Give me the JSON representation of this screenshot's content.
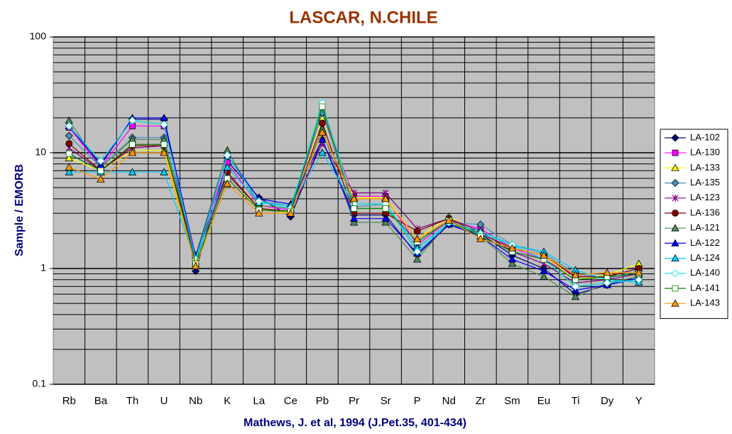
{
  "chart_data": {
    "type": "line",
    "title": "LASCAR, N.CHILE",
    "y_label": "Sample / EMORB",
    "x_label": "Mathews, J. et al, 1994 (J.Pet.35, 401-434)",
    "log_scale": true,
    "grid": true,
    "minor_grid": true,
    "legend_position": "right",
    "ylim": [
      0.1,
      100
    ],
    "yticks": [
      0.1,
      1,
      10,
      100
    ],
    "categories": [
      "Rb",
      "Ba",
      "Th",
      "U",
      "Nb",
      "K",
      "La",
      "Ce",
      "Pb",
      "Pr",
      "Sr",
      "P",
      "Nd",
      "Zr",
      "Sm",
      "Eu",
      "Ti",
      "Dy",
      "Y"
    ],
    "series": [
      {
        "name": "LA-102",
        "color": "#000080",
        "marker": "diamond",
        "values": [
          17,
          8,
          19.5,
          19.5,
          0.95,
          8.5,
          4.1,
          2.8,
          13,
          2.9,
          2.9,
          1.3,
          2.4,
          2.0,
          1.3,
          1.0,
          0.6,
          0.72,
          0.85
        ]
      },
      {
        "name": "LA-130",
        "color": "#ff00ff",
        "marker": "square",
        "values": [
          16.5,
          7.5,
          17,
          17,
          1.3,
          8.2,
          3.5,
          3.2,
          22,
          4.2,
          4.2,
          1.6,
          2.6,
          2.2,
          1.5,
          1.2,
          0.85,
          0.85,
          1.0
        ]
      },
      {
        "name": "LA-133",
        "color": "#ffff00",
        "marker": "triangle",
        "values": [
          9,
          7,
          10.5,
          10.5,
          1.1,
          6,
          3.3,
          3.0,
          20,
          4.1,
          4.1,
          1.8,
          2.8,
          2.0,
          1.5,
          1.3,
          0.8,
          0.88,
          1.1
        ]
      },
      {
        "name": "LA-135",
        "color": "#4a8fb8",
        "marker": "diamond",
        "values": [
          14,
          7.5,
          13.5,
          13.5,
          1.3,
          9.5,
          3.8,
          3.5,
          22,
          3.4,
          3.6,
          1.5,
          2.5,
          2.4,
          1.6,
          1.35,
          0.9,
          0.82,
          0.95
        ]
      },
      {
        "name": "LA-123",
        "color": "#800080",
        "marker": "star",
        "values": [
          11,
          7,
          11,
          11.5,
          1.2,
          6.5,
          3.3,
          3.1,
          12,
          4.5,
          4.5,
          2.2,
          2.7,
          2.1,
          1.4,
          1.1,
          0.75,
          0.8,
          0.9
        ]
      },
      {
        "name": "LA-136",
        "color": "#800000",
        "marker": "circle",
        "values": [
          12,
          7,
          11.5,
          11.5,
          1.3,
          6.8,
          3.3,
          3.1,
          18,
          3.0,
          3.0,
          2.1,
          2.7,
          2.0,
          1.5,
          1.3,
          0.85,
          0.85,
          1.0
        ]
      },
      {
        "name": "LA-121",
        "color": "#4f8a5a",
        "marker": "triangle",
        "values": [
          19,
          7.5,
          13,
          13,
          1.3,
          10.5,
          3.5,
          3.3,
          16,
          2.5,
          2.5,
          1.2,
          2.5,
          1.9,
          1.1,
          0.85,
          0.57,
          0.75,
          0.85
        ]
      },
      {
        "name": "LA-122",
        "color": "#0000ff",
        "marker": "triangle",
        "values": [
          17,
          7.8,
          20,
          20,
          1.25,
          9.5,
          4,
          3.6,
          13,
          2.7,
          2.7,
          1.35,
          2.4,
          1.9,
          1.2,
          0.95,
          0.65,
          0.72,
          0.82
        ]
      },
      {
        "name": "LA-124",
        "color": "#00ccff",
        "marker": "triangle",
        "values": [
          6.8,
          6.8,
          6.8,
          6.8,
          1.15,
          7.5,
          3.7,
          3.5,
          10,
          3.6,
          3.6,
          1.5,
          2.5,
          2.1,
          1.6,
          1.4,
          0.97,
          0.8,
          0.76
        ]
      },
      {
        "name": "LA-140",
        "color": "#00e0e0",
        "marker": "diamond-open",
        "values": [
          17,
          8.5,
          19,
          17.5,
          1.2,
          9.5,
          3.8,
          3.3,
          27,
          3.6,
          3.6,
          1.4,
          2.5,
          2.0,
          1.6,
          1.2,
          0.7,
          0.75,
          0.8
        ]
      },
      {
        "name": "LA-141",
        "color": "#008000",
        "marker": "square-open",
        "values": [
          9.8,
          7,
          11.8,
          11.8,
          1.1,
          6,
          3.2,
          3.1,
          25,
          3.3,
          3.3,
          1.7,
          2.6,
          1.9,
          1.4,
          1.2,
          0.8,
          0.85,
          0.9
        ]
      },
      {
        "name": "LA-143",
        "color": "#ff9900",
        "marker": "triangle",
        "values": [
          7.5,
          5.9,
          10,
          10,
          1.05,
          5.4,
          3.0,
          3.0,
          15,
          4.0,
          4.0,
          1.8,
          2.6,
          1.8,
          1.5,
          1.3,
          0.88,
          0.92,
          0.92
        ]
      }
    ]
  }
}
